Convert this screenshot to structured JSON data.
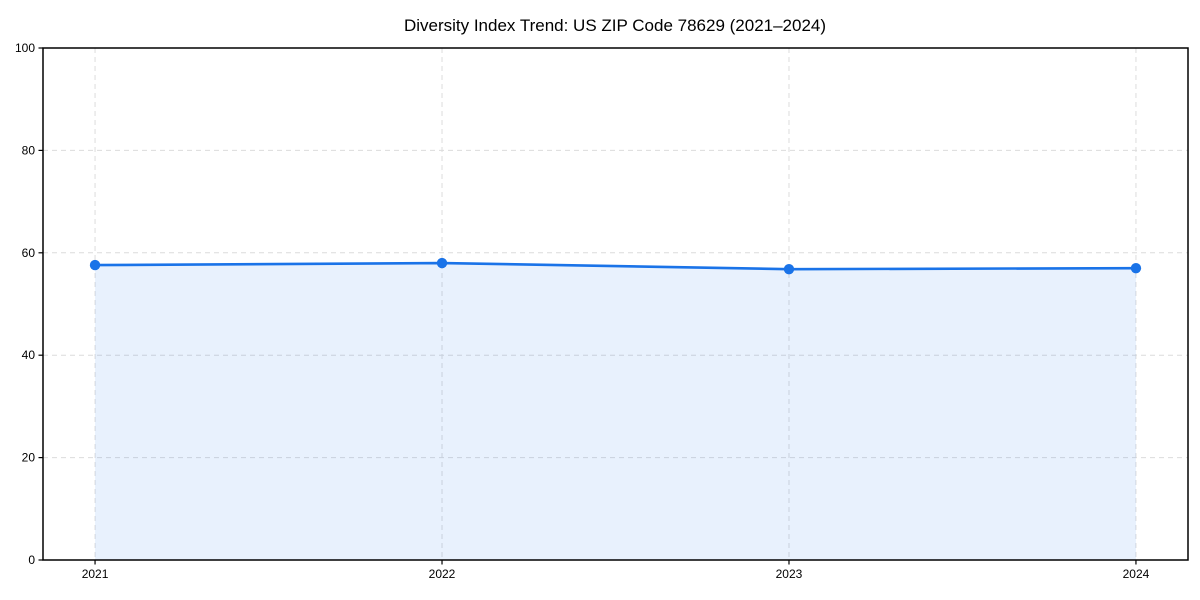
{
  "chart_data": {
    "type": "line",
    "title": "Diversity Index Trend: US ZIP Code 78629 (2021–2024)",
    "categories": [
      "2021",
      "2022",
      "2023",
      "2024"
    ],
    "series": [
      {
        "name": "Diversity Index",
        "values": [
          57.6,
          58.0,
          56.8,
          57.0
        ]
      }
    ],
    "xlabel": "",
    "ylabel": "",
    "ylim": [
      0,
      100
    ],
    "yticks": [
      0,
      20,
      40,
      60,
      80,
      100
    ],
    "grid": true,
    "grid_style": "dashed",
    "legend_position": "none",
    "area_fill_to_zero": true,
    "x_margin_frac": 0.05,
    "colors": {
      "line": "#1a73e8",
      "marker": "#1a73e8",
      "fill": "#1a73e8",
      "fill_opacity": 0.1,
      "grid": "#dcdcdc",
      "spine": "#000000",
      "text": "#000000",
      "background": "#ffffff"
    }
  }
}
